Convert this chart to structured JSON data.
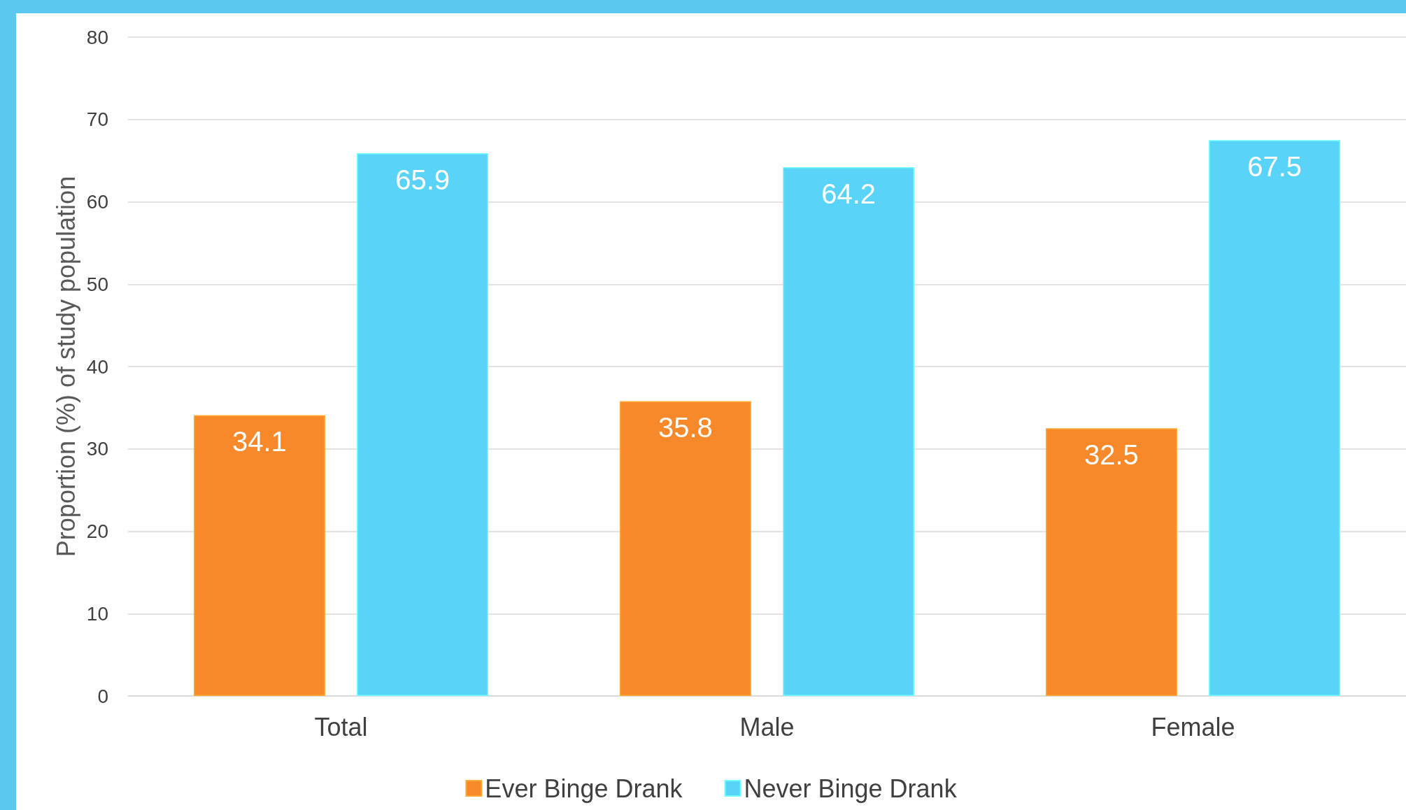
{
  "chart_data": {
    "type": "bar",
    "ylabel": "Proportion (%) of study population",
    "categories": [
      "Total",
      "Male",
      "Female"
    ],
    "series": [
      {
        "name": "Ever Binge Drank",
        "color": "#f7892a",
        "values": [
          34.1,
          35.8,
          32.5
        ]
      },
      {
        "name": "Never Binge Drank",
        "color": "#5ad3f8",
        "values": [
          65.9,
          64.2,
          67.5
        ]
      }
    ],
    "ylim": [
      0,
      80
    ],
    "yticks": [
      0,
      10,
      20,
      30,
      40,
      50,
      60,
      70,
      80
    ],
    "grid": "y",
    "legend": "bottom",
    "data_labels": true
  }
}
